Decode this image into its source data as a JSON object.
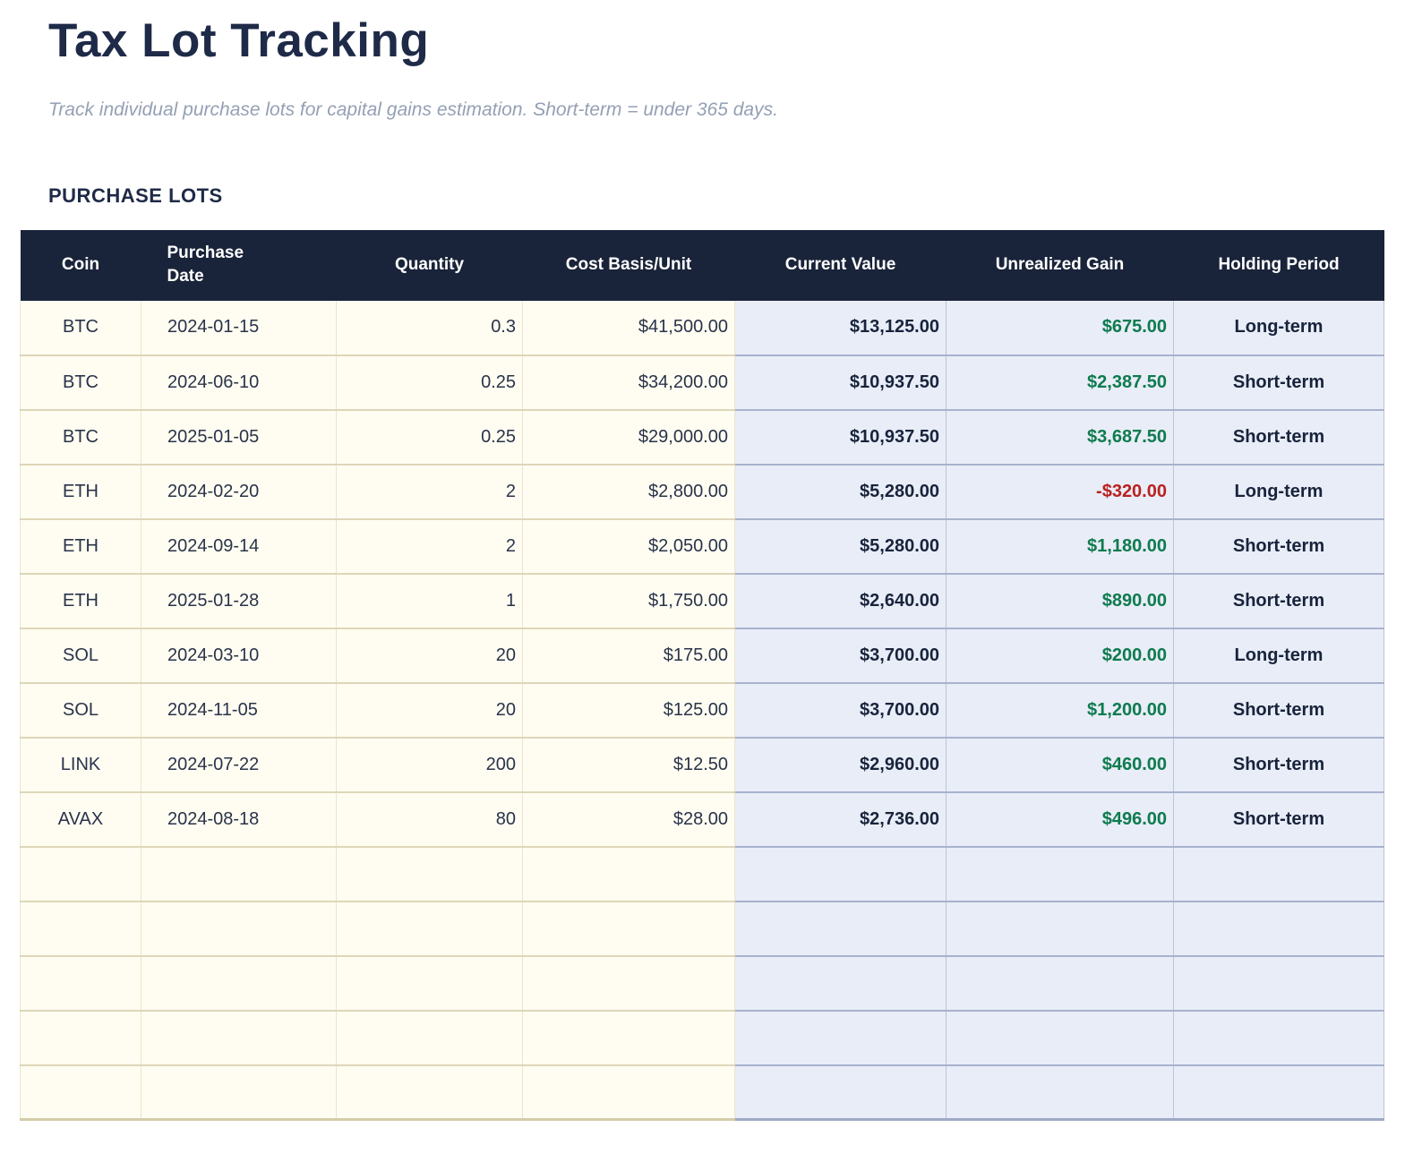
{
  "page": {
    "title": "Tax Lot Tracking",
    "subtitle": "Track individual purchase lots for capital gains estimation. Short-term = under 365 days.",
    "section_title": "PURCHASE LOTS"
  },
  "colors": {
    "header_bg": "#192339",
    "accent_navy": "#1e2a47",
    "gain_positive": "#0e7b4f",
    "gain_negative": "#b92220",
    "cream": "#fffdf1",
    "light_blue": "#e9edf7"
  },
  "table": {
    "columns": [
      "Coin",
      "Purchase\nDate",
      "Quantity",
      "Cost Basis/Unit",
      "Current Value",
      "Unrealized Gain",
      "Holding Period"
    ],
    "rows": [
      {
        "coin": "BTC",
        "date": "2024-01-15",
        "quantity": "0.3",
        "cost_basis": "$41,500.00",
        "current_value": "$13,125.00",
        "unrealized_gain": "$675.00",
        "holding_period": "Long-term"
      },
      {
        "coin": "BTC",
        "date": "2024-06-10",
        "quantity": "0.25",
        "cost_basis": "$34,200.00",
        "current_value": "$10,937.50",
        "unrealized_gain": "$2,387.50",
        "holding_period": "Short-term"
      },
      {
        "coin": "BTC",
        "date": "2025-01-05",
        "quantity": "0.25",
        "cost_basis": "$29,000.00",
        "current_value": "$10,937.50",
        "unrealized_gain": "$3,687.50",
        "holding_period": "Short-term"
      },
      {
        "coin": "ETH",
        "date": "2024-02-20",
        "quantity": "2",
        "cost_basis": "$2,800.00",
        "current_value": "$5,280.00",
        "unrealized_gain": "-$320.00",
        "holding_period": "Long-term"
      },
      {
        "coin": "ETH",
        "date": "2024-09-14",
        "quantity": "2",
        "cost_basis": "$2,050.00",
        "current_value": "$5,280.00",
        "unrealized_gain": "$1,180.00",
        "holding_period": "Short-term"
      },
      {
        "coin": "ETH",
        "date": "2025-01-28",
        "quantity": "1",
        "cost_basis": "$1,750.00",
        "current_value": "$2,640.00",
        "unrealized_gain": "$890.00",
        "holding_period": "Short-term"
      },
      {
        "coin": "SOL",
        "date": "2024-03-10",
        "quantity": "20",
        "cost_basis": "$175.00",
        "current_value": "$3,700.00",
        "unrealized_gain": "$200.00",
        "holding_period": "Long-term"
      },
      {
        "coin": "SOL",
        "date": "2024-11-05",
        "quantity": "20",
        "cost_basis": "$125.00",
        "current_value": "$3,700.00",
        "unrealized_gain": "$1,200.00",
        "holding_period": "Short-term"
      },
      {
        "coin": "LINK",
        "date": "2024-07-22",
        "quantity": "200",
        "cost_basis": "$12.50",
        "current_value": "$2,960.00",
        "unrealized_gain": "$460.00",
        "holding_period": "Short-term"
      },
      {
        "coin": "AVAX",
        "date": "2024-08-18",
        "quantity": "80",
        "cost_basis": "$28.00",
        "current_value": "$2,736.00",
        "unrealized_gain": "$496.00",
        "holding_period": "Short-term"
      }
    ],
    "empty_row_count": 5
  }
}
